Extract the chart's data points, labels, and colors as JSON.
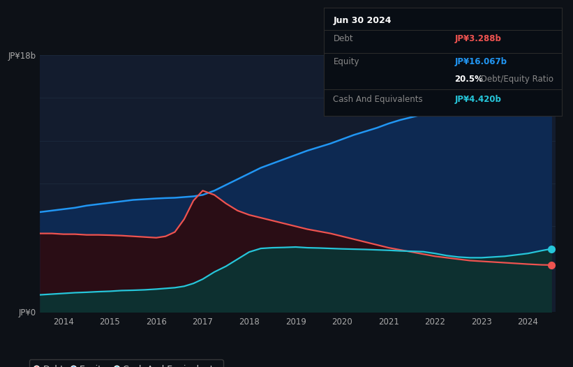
{
  "background_color": "#0d1117",
  "chart_bg": "#131c2e",
  "years": [
    2013.5,
    2013.75,
    2014.0,
    2014.25,
    2014.5,
    2014.75,
    2015.0,
    2015.25,
    2015.5,
    2015.75,
    2016.0,
    2016.2,
    2016.4,
    2016.6,
    2016.8,
    2017.0,
    2017.25,
    2017.5,
    2017.75,
    2018.0,
    2018.25,
    2018.5,
    2018.75,
    2019.0,
    2019.25,
    2019.5,
    2019.75,
    2020.0,
    2020.25,
    2020.5,
    2020.75,
    2021.0,
    2021.25,
    2021.5,
    2021.75,
    2022.0,
    2022.25,
    2022.5,
    2022.75,
    2023.0,
    2023.25,
    2023.5,
    2023.75,
    2024.0,
    2024.3,
    2024.5
  ],
  "equity": [
    7.0,
    7.1,
    7.2,
    7.3,
    7.45,
    7.55,
    7.65,
    7.75,
    7.85,
    7.9,
    7.95,
    7.98,
    8.0,
    8.05,
    8.1,
    8.2,
    8.5,
    8.9,
    9.3,
    9.7,
    10.1,
    10.4,
    10.7,
    11.0,
    11.3,
    11.55,
    11.8,
    12.1,
    12.4,
    12.65,
    12.9,
    13.2,
    13.45,
    13.65,
    13.85,
    14.1,
    14.35,
    14.55,
    14.75,
    14.95,
    15.15,
    15.35,
    15.6,
    15.8,
    16.0,
    16.067
  ],
  "debt": [
    5.5,
    5.5,
    5.45,
    5.45,
    5.4,
    5.4,
    5.38,
    5.35,
    5.3,
    5.25,
    5.2,
    5.3,
    5.6,
    6.5,
    7.8,
    8.5,
    8.2,
    7.6,
    7.1,
    6.8,
    6.6,
    6.4,
    6.2,
    6.0,
    5.8,
    5.65,
    5.5,
    5.3,
    5.1,
    4.9,
    4.7,
    4.5,
    4.35,
    4.2,
    4.05,
    3.9,
    3.8,
    3.7,
    3.6,
    3.55,
    3.5,
    3.45,
    3.4,
    3.35,
    3.3,
    3.288
  ],
  "cash": [
    1.2,
    1.25,
    1.3,
    1.35,
    1.38,
    1.42,
    1.45,
    1.5,
    1.52,
    1.55,
    1.6,
    1.65,
    1.7,
    1.8,
    2.0,
    2.3,
    2.8,
    3.2,
    3.7,
    4.2,
    4.45,
    4.5,
    4.52,
    4.55,
    4.5,
    4.48,
    4.45,
    4.42,
    4.4,
    4.38,
    4.35,
    4.32,
    4.28,
    4.25,
    4.22,
    4.1,
    3.95,
    3.85,
    3.8,
    3.8,
    3.85,
    3.9,
    4.0,
    4.1,
    4.3,
    4.42
  ],
  "equity_color": "#2196f3",
  "debt_color": "#ef5350",
  "cash_color": "#26c6da",
  "equity_fill": "#0d2952",
  "debt_fill": "#2a0d15",
  "cash_fill": "#0d3030",
  "ylim": [
    0,
    18
  ],
  "xlim_start": 2013.5,
  "xlim_end": 2024.6,
  "xtick_years": [
    2014,
    2015,
    2016,
    2017,
    2018,
    2019,
    2020,
    2021,
    2022,
    2023,
    2024
  ],
  "grid_color": "#1e2d40",
  "grid_values": [
    3,
    6,
    9,
    12,
    15,
    18
  ],
  "tooltip_title": "Jun 30 2024",
  "tooltip_debt_label": "Debt",
  "tooltip_debt_value": "JP¥3.288b",
  "tooltip_equity_label": "Equity",
  "tooltip_equity_value": "JP¥16.067b",
  "tooltip_ratio": "20.5%",
  "tooltip_ratio_label": " Debt/Equity Ratio",
  "tooltip_cash_label": "Cash And Equivalents",
  "tooltip_cash_value": "JP¥4.420b",
  "legend_labels": [
    "Debt",
    "Equity",
    "Cash And Equivalents"
  ],
  "marker_size": 7,
  "tooltip_bg": "#080d14",
  "tooltip_border": "#2a2a2a",
  "text_muted": "#888888",
  "text_white": "#ffffff"
}
